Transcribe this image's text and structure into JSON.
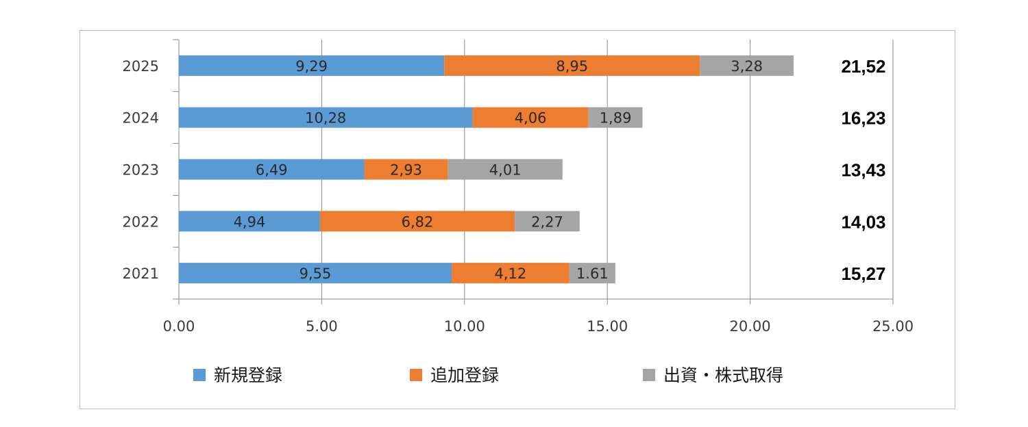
{
  "chart_data": {
    "type": "bar",
    "orientation": "horizontal",
    "stacked": true,
    "categories": [
      "2025",
      "2024",
      "2023",
      "2022",
      "2021"
    ],
    "series": [
      {
        "name": "新規登録",
        "color": "#5b9bd5",
        "values": [
          9.29,
          10.28,
          6.49,
          4.94,
          9.55
        ],
        "labels": [
          "9,29",
          "10,28",
          "6,49",
          "4,94",
          "9,55"
        ]
      },
      {
        "name": "追加登録",
        "color": "#ed7d31",
        "values": [
          8.95,
          4.06,
          2.93,
          6.82,
          4.12
        ],
        "labels": [
          "8,95",
          "4,06",
          "2,93",
          "6,82",
          "4,12"
        ]
      },
      {
        "name": "出資・株式取得",
        "color": "#a5a5a5",
        "values": [
          3.28,
          1.89,
          4.01,
          2.27,
          1.61
        ],
        "labels": [
          "3,28",
          "1,89",
          "4,01",
          "2,27",
          "1.61"
        ]
      }
    ],
    "totals": [
      "21,52",
      "16,23",
      "13,43",
      "14,03",
      "15,27"
    ],
    "xlim": [
      0,
      25
    ],
    "xticks": [
      "0.00",
      "5.00",
      "10.00",
      "15.00",
      "20.00",
      "25.00"
    ],
    "gridlines": "vertical",
    "legend_position": "bottom",
    "title": "",
    "xlabel": "",
    "ylabel": ""
  }
}
